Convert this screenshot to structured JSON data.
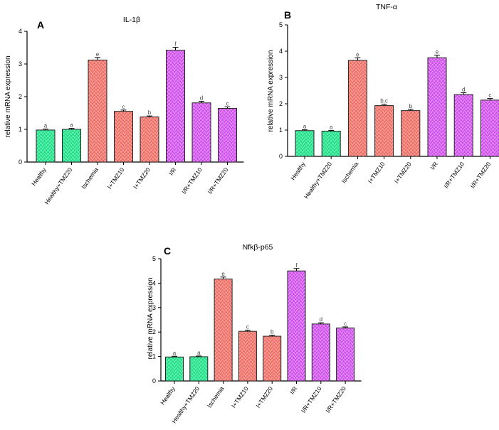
{
  "figure": {
    "colors": {
      "healthy": "#20e08a",
      "ischemia": "#f07068",
      "ir": "#d050f0",
      "axis": "#000000"
    }
  },
  "chart_data": [
    {
      "panel": "A",
      "type": "bar",
      "title": "IL-1β",
      "ylabel": "relative mRNA expression",
      "xlabel": "",
      "ylim": [
        0,
        4
      ],
      "yticks": [
        "0",
        "1",
        "2",
        "3",
        "4"
      ],
      "categories": [
        "Healthy",
        "Healthy+TMZ20",
        "Ischemia",
        "I+TMZ10",
        "I+TMZ20",
        "I/R",
        "I/R+TMZ10",
        "I/R+TMZ20"
      ],
      "values": [
        0.98,
        1.0,
        3.12,
        1.55,
        1.38,
        3.42,
        1.81,
        1.64
      ],
      "errors": [
        0.03,
        0.03,
        0.08,
        0.04,
        0.03,
        0.09,
        0.05,
        0.05
      ],
      "significance": [
        "a",
        "a",
        "e",
        "c",
        "b",
        "f",
        "d",
        "c"
      ],
      "groups": [
        "healthy",
        "healthy",
        "ischemia",
        "ischemia",
        "ischemia",
        "ir",
        "ir",
        "ir"
      ]
    },
    {
      "panel": "B",
      "type": "bar",
      "title": "TNF-α",
      "ylabel": "relative mRNA expression",
      "xlabel": "",
      "ylim": [
        0,
        5
      ],
      "yticks": [
        "0",
        "1",
        "2",
        "3",
        "4",
        "5"
      ],
      "categories": [
        "Healthy",
        "Healthy+TMZ20",
        "Ischemia",
        "I+TMZ10",
        "I+TMZ20",
        "I/R",
        "I/R+TMZ10",
        "I/R+TMZ20"
      ],
      "values": [
        0.98,
        0.96,
        3.65,
        1.93,
        1.74,
        3.75,
        2.35,
        2.14
      ],
      "errors": [
        0.03,
        0.03,
        0.1,
        0.05,
        0.05,
        0.1,
        0.07,
        0.06
      ],
      "significance": [
        "a",
        "a",
        "e",
        "b,c",
        "b",
        "e",
        "d",
        "c"
      ],
      "groups": [
        "healthy",
        "healthy",
        "ischemia",
        "ischemia",
        "ischemia",
        "ir",
        "ir",
        "ir"
      ]
    },
    {
      "panel": "C",
      "type": "bar",
      "title": "Nfkβ-p65",
      "ylabel": "relative mRNA expression",
      "xlabel": "",
      "ylim": [
        0,
        5
      ],
      "yticks": [
        "0",
        "1",
        "2",
        "3",
        "4",
        "5"
      ],
      "categories": [
        "Healthy",
        "Healthy+TMZ20",
        "Ischemia",
        "I+TMZ10",
        "I+TMZ20",
        "I/R",
        "I/R+TMZ10",
        "I/R+TMZ20"
      ],
      "values": [
        0.98,
        0.99,
        4.17,
        2.03,
        1.83,
        4.5,
        2.33,
        2.17
      ],
      "errors": [
        0.03,
        0.03,
        0.08,
        0.05,
        0.04,
        0.1,
        0.05,
        0.04
      ],
      "significance": [
        "a",
        "a",
        "e",
        "c",
        "b",
        "f",
        "d",
        "c"
      ],
      "groups": [
        "healthy",
        "healthy",
        "ischemia",
        "ischemia",
        "ischemia",
        "ir",
        "ir",
        "ir"
      ]
    }
  ]
}
